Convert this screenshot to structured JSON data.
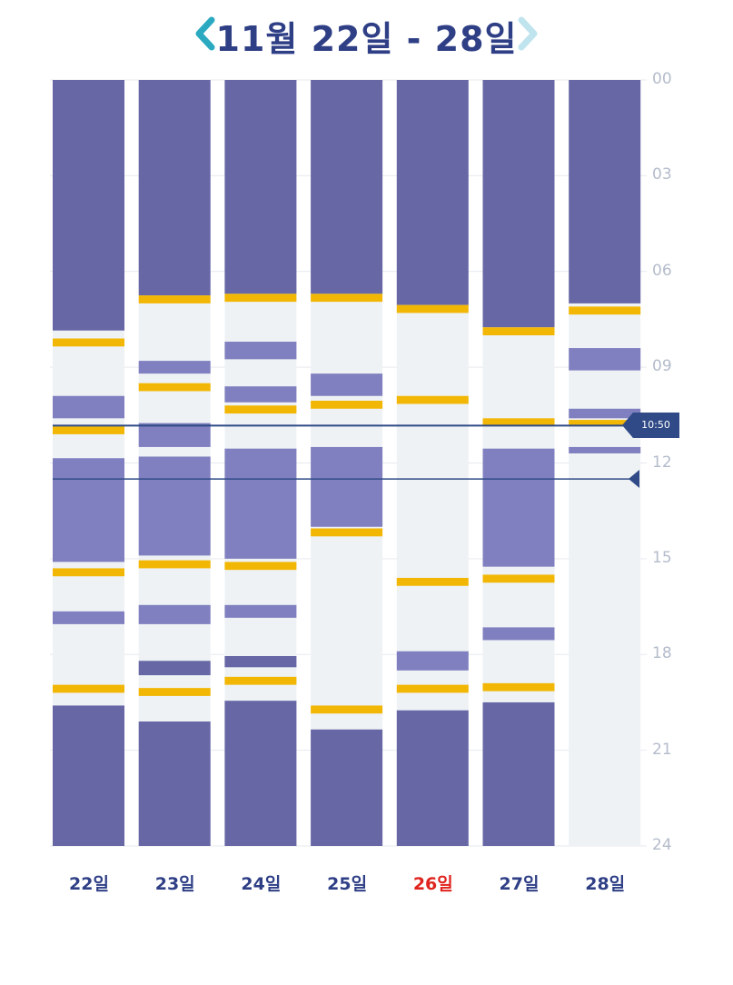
{
  "header": {
    "title": "11월 22일 - 28일",
    "prev_icon": "chevron-left-icon",
    "next_icon": "chevron-right-icon"
  },
  "colors": {
    "sleep": "#6767a6",
    "nap": "#8080c0",
    "feed": "#f2b705",
    "awake": "#eef2f5",
    "accent": "#2aa9c0",
    "now_line": "#2f4a86",
    "weekend_day": "#e0231e"
  },
  "now": {
    "label": "10:50",
    "hour": 10.83
  },
  "marker": {
    "hour": 12.5
  },
  "hour_labels": [
    "00",
    "03",
    "06",
    "09",
    "12",
    "15",
    "18",
    "21",
    "24"
  ],
  "chart_data": {
    "type": "timeline",
    "days": [
      {
        "label": "22일",
        "highlight": false,
        "segments": [
          {
            "kind": "sleep",
            "start": 0,
            "end": 7.85
          },
          {
            "kind": "feed",
            "start": 8.1,
            "end": 8.35
          },
          {
            "kind": "nap",
            "start": 9.9,
            "end": 10.6
          },
          {
            "kind": "feed",
            "start": 10.85,
            "end": 11.1
          },
          {
            "kind": "nap",
            "start": 11.85,
            "end": 15.1
          },
          {
            "kind": "feed",
            "start": 15.3,
            "end": 15.55
          },
          {
            "kind": "nap",
            "start": 16.65,
            "end": 17.05
          },
          {
            "kind": "feed",
            "start": 18.95,
            "end": 19.2
          },
          {
            "kind": "sleep",
            "start": 19.6,
            "end": 24
          }
        ]
      },
      {
        "label": "23일",
        "highlight": false,
        "segments": [
          {
            "kind": "sleep",
            "start": 0,
            "end": 6.75
          },
          {
            "kind": "feed",
            "start": 6.75,
            "end": 7.0
          },
          {
            "kind": "nap",
            "start": 8.8,
            "end": 9.2
          },
          {
            "kind": "feed",
            "start": 9.5,
            "end": 9.75
          },
          {
            "kind": "nap",
            "start": 10.75,
            "end": 11.5
          },
          {
            "kind": "nap",
            "start": 11.8,
            "end": 14.9
          },
          {
            "kind": "feed",
            "start": 15.05,
            "end": 15.3
          },
          {
            "kind": "nap",
            "start": 16.45,
            "end": 17.05
          },
          {
            "kind": "sleep",
            "start": 18.2,
            "end": 18.65
          },
          {
            "kind": "feed",
            "start": 19.05,
            "end": 19.3
          },
          {
            "kind": "sleep",
            "start": 20.1,
            "end": 24
          }
        ]
      },
      {
        "label": "24일",
        "highlight": false,
        "segments": [
          {
            "kind": "sleep",
            "start": 0,
            "end": 6.7
          },
          {
            "kind": "feed",
            "start": 6.7,
            "end": 6.95
          },
          {
            "kind": "nap",
            "start": 8.2,
            "end": 8.75
          },
          {
            "kind": "nap",
            "start": 9.6,
            "end": 10.1
          },
          {
            "kind": "feed",
            "start": 10.2,
            "end": 10.45
          },
          {
            "kind": "nap",
            "start": 11.55,
            "end": 15.0
          },
          {
            "kind": "feed",
            "start": 15.1,
            "end": 15.35
          },
          {
            "kind": "nap",
            "start": 16.45,
            "end": 16.85
          },
          {
            "kind": "sleep",
            "start": 18.05,
            "end": 18.4
          },
          {
            "kind": "feed",
            "start": 18.7,
            "end": 18.95
          },
          {
            "kind": "sleep",
            "start": 19.45,
            "end": 24
          }
        ]
      },
      {
        "label": "25일",
        "highlight": false,
        "segments": [
          {
            "kind": "sleep",
            "start": 0,
            "end": 6.7
          },
          {
            "kind": "feed",
            "start": 6.7,
            "end": 6.95
          },
          {
            "kind": "nap",
            "start": 9.2,
            "end": 9.9
          },
          {
            "kind": "feed",
            "start": 10.05,
            "end": 10.3
          },
          {
            "kind": "nap",
            "start": 11.5,
            "end": 14.0
          },
          {
            "kind": "feed",
            "start": 14.05,
            "end": 14.3
          },
          {
            "kind": "feed",
            "start": 19.6,
            "end": 19.85
          },
          {
            "kind": "sleep",
            "start": 20.35,
            "end": 24
          }
        ]
      },
      {
        "label": "26일",
        "highlight": true,
        "segments": [
          {
            "kind": "sleep",
            "start": 0,
            "end": 7.05
          },
          {
            "kind": "feed",
            "start": 7.05,
            "end": 7.3
          },
          {
            "kind": "feed",
            "start": 9.9,
            "end": 10.15
          },
          {
            "kind": "feed",
            "start": 15.6,
            "end": 15.85
          },
          {
            "kind": "nap",
            "start": 17.9,
            "end": 18.5
          },
          {
            "kind": "feed",
            "start": 18.95,
            "end": 19.2
          },
          {
            "kind": "sleep",
            "start": 19.75,
            "end": 24
          }
        ]
      },
      {
        "label": "27일",
        "highlight": false,
        "segments": [
          {
            "kind": "sleep",
            "start": 0,
            "end": 7.75
          },
          {
            "kind": "feed",
            "start": 7.75,
            "end": 8.0
          },
          {
            "kind": "feed",
            "start": 10.6,
            "end": 10.85
          },
          {
            "kind": "nap",
            "start": 11.55,
            "end": 15.25
          },
          {
            "kind": "feed",
            "start": 15.5,
            "end": 15.75
          },
          {
            "kind": "nap",
            "start": 17.15,
            "end": 17.55
          },
          {
            "kind": "feed",
            "start": 18.9,
            "end": 19.15
          },
          {
            "kind": "sleep",
            "start": 19.5,
            "end": 24
          }
        ]
      },
      {
        "label": "28일",
        "highlight": false,
        "segments": [
          {
            "kind": "sleep",
            "start": 0,
            "end": 7.0
          },
          {
            "kind": "feed",
            "start": 7.1,
            "end": 7.35
          },
          {
            "kind": "nap",
            "start": 8.4,
            "end": 9.1
          },
          {
            "kind": "nap",
            "start": 10.3,
            "end": 10.6
          },
          {
            "kind": "feed",
            "start": 10.65,
            "end": 10.85
          },
          {
            "kind": "nap",
            "start": 11.5,
            "end": 11.7
          }
        ],
        "ends_at": 10.83
      }
    ]
  }
}
